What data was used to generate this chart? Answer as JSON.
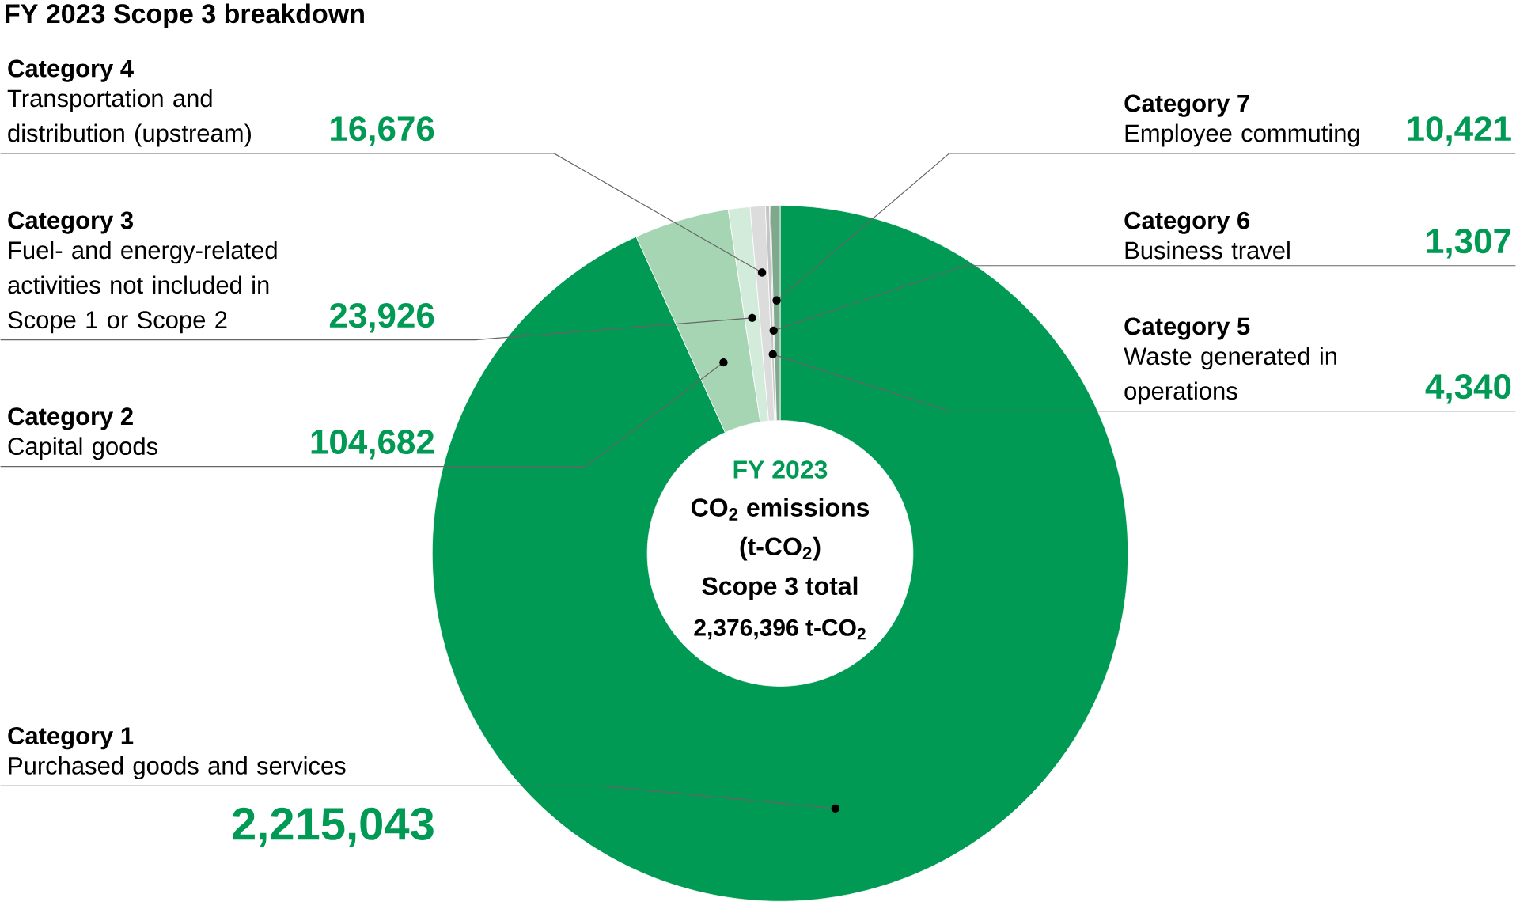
{
  "chart_data": {
    "type": "donut",
    "title": "FY 2023 Scope 3 breakdown",
    "categories": [
      "Purchased goods and services",
      "Capital goods",
      "Fuel- and energy-related activities not included in Scope 1 or Scope 2",
      "Transportation and distribution (upstream)",
      "Waste generated in operations",
      "Business travel",
      "Employee commuting"
    ],
    "values": [
      2215043,
      104682,
      23926,
      16676,
      4340,
      1307,
      10421
    ],
    "value_labels": [
      "2,215,043",
      "104,682",
      "23,926",
      "16,676",
      "4,340",
      "1,307",
      "10,421"
    ],
    "colors": [
      "#009a54",
      "#a6d5b4",
      "#d3ebdb",
      "#dcdcdc",
      "#c4c4c4",
      "#9a9a9a",
      "#7fa98c"
    ],
    "annotations": [
      "Category 1",
      "Category 2",
      "Category 3",
      "Category 4",
      "Category 5",
      "Category 6",
      "Category 7",
      "FY 2023",
      "CO$_{2}$ emissions",
      "(t-CO$_{2}$)",
      "Scope 3 total",
      "2,376,396 t-CO$_{2}$"
    ]
  }
}
